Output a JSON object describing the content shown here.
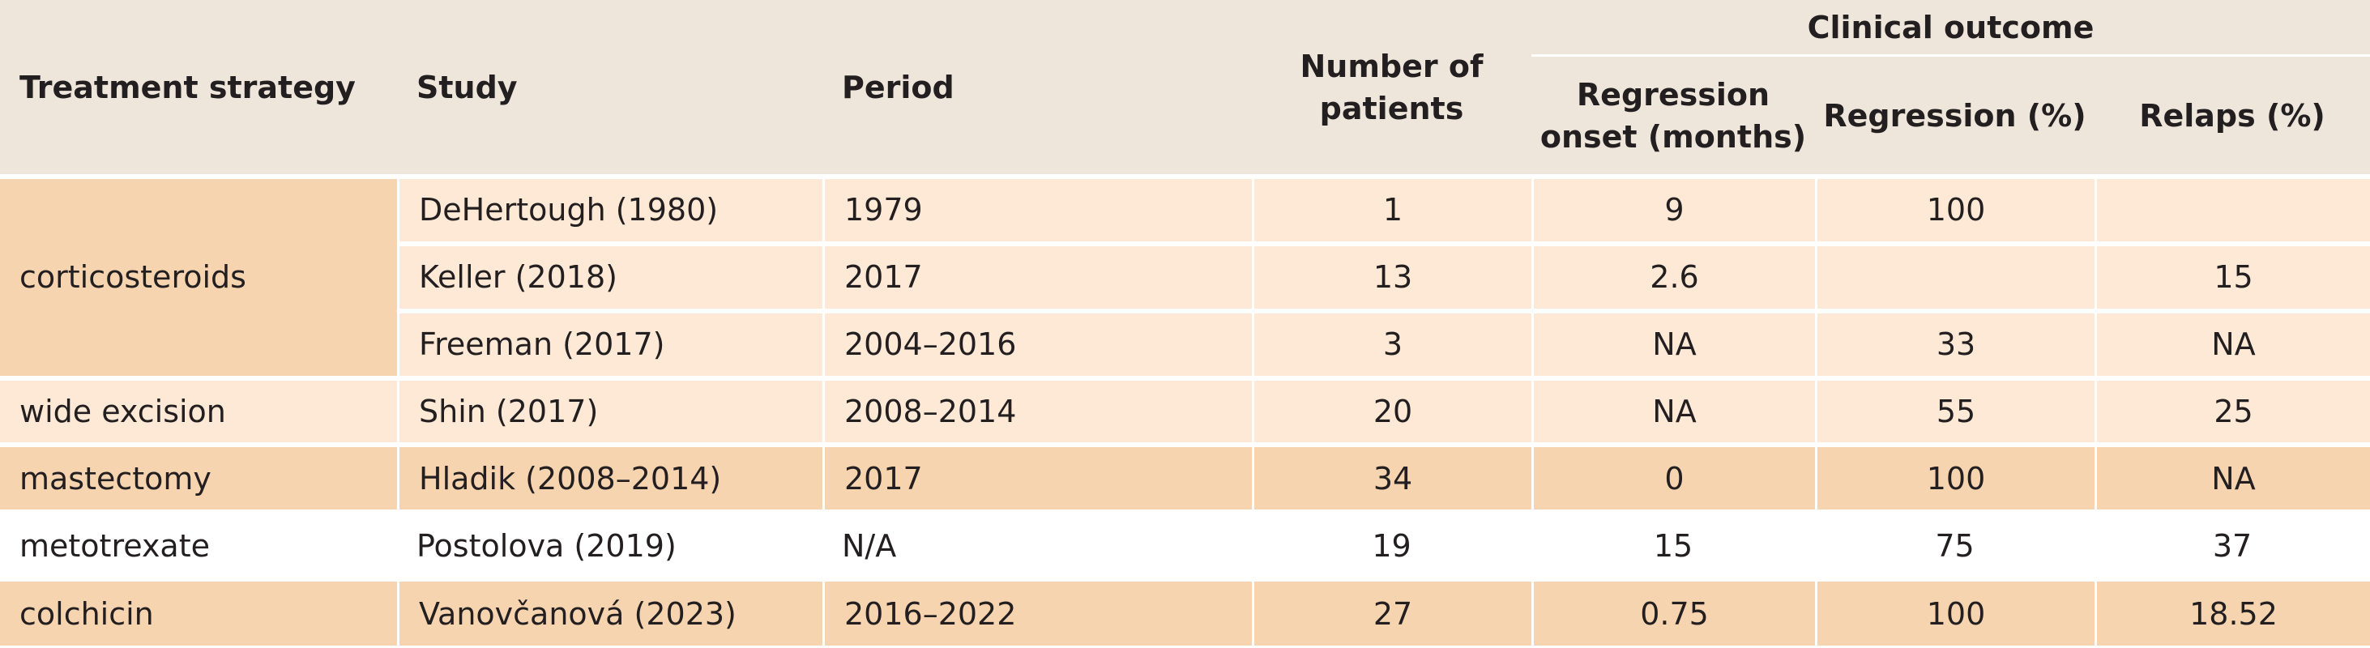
{
  "columns": {
    "strategy": "Treatment strategy",
    "study": "Study",
    "period": "Period",
    "patients": "Number of patients",
    "group": "Clinical outcome",
    "onset": "Regression onset (months)",
    "regression": "Regression (%)",
    "relapse": "Relaps (%)"
  },
  "groups": {
    "corticosteroids": "corticosteroids",
    "wide_excision": "wide excision",
    "mastectomy": "mastectomy",
    "metotrexate": "metotrexate",
    "colchicin": "colchicin"
  },
  "rows": [
    {
      "study": "DeHertough (1980)",
      "period": "1979",
      "patients": "1",
      "onset": "9",
      "regression": "100",
      "relapse": ""
    },
    {
      "study": "Keller (2018)",
      "period": "2017",
      "patients": "13",
      "onset": "2.6",
      "regression": "",
      "relapse": "15"
    },
    {
      "study": "Freeman (2017)",
      "period": "2004–2016",
      "patients": "3",
      "onset": "NA",
      "regression": "33",
      "relapse": "NA"
    },
    {
      "study": "Shin (2017)",
      "period": "2008–2014",
      "patients": "20",
      "onset": "NA",
      "regression": "55",
      "relapse": "25"
    },
    {
      "study": "Hladik (2008–2014)",
      "period": "2017",
      "patients": "34",
      "onset": "0",
      "regression": "100",
      "relapse": "NA"
    },
    {
      "study": "Postolova (2019)",
      "period": "N/A",
      "patients": "19",
      "onset": "15",
      "regression": "75",
      "relapse": "37"
    },
    {
      "study": "Vanovčanová (2023)",
      "period": "2016–2022",
      "patients": "27",
      "onset": "0.75",
      "regression": "100",
      "relapse": "18.52"
    }
  ]
}
